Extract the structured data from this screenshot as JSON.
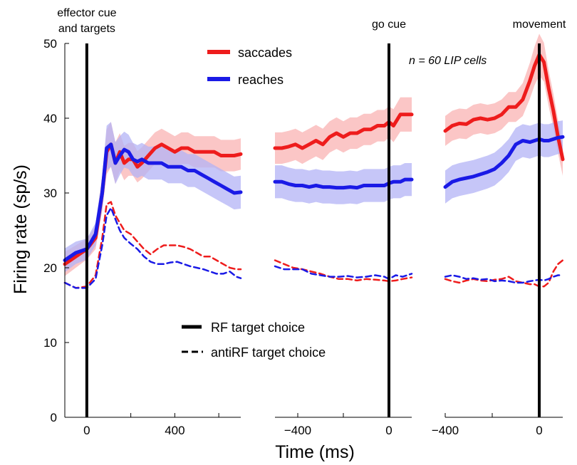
{
  "chart_data": {
    "type": "line",
    "ylabel": "Firing rate (sp/s)",
    "xlabel": "Time (ms)",
    "ylim": [
      0,
      50
    ],
    "yticks": [
      0,
      10,
      20,
      30,
      40,
      50
    ],
    "annotation": "n = 60 LIP cells",
    "legend": {
      "saccades": "saccades",
      "reaches": "reaches",
      "rf": "RF target choice",
      "antirf": "antiRF target choice"
    },
    "colors": {
      "saccades": "#ee1c1c",
      "reaches": "#1a1ae6",
      "saccades_band": "#f9b3b3",
      "reaches_band": "#b3b3f5"
    },
    "panels": [
      {
        "event": "effector cue and targets",
        "event_lines": [
          "effector cue",
          "and targets"
        ],
        "xlim": [
          -100,
          700
        ],
        "xticks": [
          0,
          400
        ],
        "minor_ticks": [
          200,
          600
        ],
        "series": [
          {
            "key": "saccades",
            "style": "solid",
            "x": [
              -100,
              -50,
              0,
              40,
              70,
              90,
              110,
              130,
              150,
              170,
              190,
              210,
              230,
              250,
              280,
              310,
              340,
              370,
              400,
              430,
              460,
              490,
              520,
              550,
              580,
              610,
              640,
              670,
              700
            ],
            "y": [
              20.5,
              21.5,
              22.5,
              24,
              30,
              35.5,
              36.5,
              34,
              35.5,
              34,
              34.5,
              34.5,
              33.5,
              34,
              35,
              36,
              36.5,
              36,
              35.5,
              36,
              36,
              35.5,
              35.5,
              35.5,
              35.5,
              35,
              35,
              35,
              35.2
            ],
            "band": [
              1.6,
              1.5,
              1.4,
              1.5,
              2.3,
              3,
              3,
              2.8,
              2.5,
              2.3,
              2.2,
              2.2,
              2.1,
              2.1,
              2.1,
              2.1,
              2.1,
              2.1,
              2.1,
              2.1,
              2.1,
              2.1,
              2.1,
              2.1,
              2.1,
              2.1,
              2.1,
              2.1,
              2.1
            ]
          },
          {
            "key": "reaches",
            "style": "solid",
            "x": [
              -100,
              -50,
              0,
              40,
              70,
              90,
              110,
              130,
              150,
              170,
              190,
              210,
              230,
              250,
              280,
              310,
              340,
              370,
              400,
              430,
              460,
              490,
              520,
              550,
              580,
              610,
              640,
              670,
              700
            ],
            "y": [
              21,
              22,
              22.5,
              24.5,
              30,
              36,
              36.5,
              34,
              35,
              35.8,
              35.5,
              34.5,
              34.2,
              34.5,
              34,
              34,
              34,
              33.5,
              33.5,
              33.5,
              33,
              33,
              32.5,
              32,
              31.5,
              31,
              30.5,
              30,
              30.1
            ],
            "band": [
              1.6,
              1.5,
              1.4,
              1.5,
              2.3,
              3,
              3,
              2.8,
              2.6,
              2.4,
              2.3,
              2.2,
              2.2,
              2.2,
              2.2,
              2.2,
              2.2,
              2.2,
              2.2,
              2.2,
              2.2,
              2.2,
              2.2,
              2.2,
              2.2,
              2.2,
              2.2,
              2.2,
              2.2
            ]
          },
          {
            "key": "saccades",
            "style": "dashed",
            "x": [
              -100,
              -50,
              0,
              40,
              70,
              90,
              110,
              130,
              150,
              170,
              200,
              230,
              260,
              290,
              320,
              350,
              380,
              410,
              440,
              470,
              500,
              530,
              560,
              590,
              620,
              650,
              680,
              700
            ],
            "y": [
              18,
              17.3,
              17.5,
              19,
              24,
              28.5,
              28.8,
              27,
              26,
              25,
              24.5,
              23.5,
              22.5,
              21.8,
              22.5,
              23,
              23,
              23,
              22.8,
              22.5,
              22,
              21.5,
              21.5,
              21,
              20.5,
              20,
              19.8,
              19.8
            ]
          },
          {
            "key": "reaches",
            "style": "dashed",
            "x": [
              -100,
              -50,
              0,
              40,
              70,
              90,
              110,
              130,
              150,
              170,
              200,
              230,
              260,
              290,
              320,
              350,
              380,
              410,
              440,
              470,
              500,
              530,
              560,
              590,
              620,
              650,
              680,
              700
            ],
            "y": [
              18,
              17.3,
              17.3,
              18.5,
              23,
              27,
              28,
              26.5,
              25,
              24,
              23.2,
              22.5,
              21.5,
              20.8,
              20.5,
              20.5,
              20.7,
              20.8,
              20.5,
              20.2,
              20,
              19.8,
              19.5,
              19.2,
              19.2,
              19.5,
              18.8,
              18.6
            ]
          }
        ]
      },
      {
        "event": "go cue",
        "event_lines": [
          "go cue"
        ],
        "xlim": [
          -500,
          100
        ],
        "xticks": [
          -400,
          0
        ],
        "minor_ticks": [
          -200
        ],
        "series": [
          {
            "key": "saccades",
            "style": "solid",
            "x": [
              -500,
              -470,
              -440,
              -410,
              -380,
              -350,
              -320,
              -290,
              -260,
              -230,
              -200,
              -170,
              -140,
              -110,
              -80,
              -50,
              -20,
              0,
              20,
              50,
              70,
              100
            ],
            "y": [
              36,
              36,
              36.2,
              36.5,
              36,
              36.5,
              37,
              36.5,
              37.5,
              38,
              37.5,
              38,
              38,
              38.5,
              38.5,
              39,
              39,
              39.5,
              39,
              40.5,
              40.5,
              40.5
            ],
            "band": [
              2.1,
              2.1,
              2.1,
              2.1,
              2.1,
              2.1,
              2.1,
              2.1,
              2.1,
              2.1,
              2.1,
              2.1,
              2.1,
              2.1,
              2.1,
              2.1,
              2.1,
              2.1,
              2.2,
              2.3,
              2.3,
              2.3
            ]
          },
          {
            "key": "reaches",
            "style": "solid",
            "x": [
              -500,
              -470,
              -440,
              -410,
              -380,
              -350,
              -320,
              -290,
              -260,
              -230,
              -200,
              -170,
              -140,
              -110,
              -80,
              -50,
              -20,
              0,
              20,
              50,
              70,
              100
            ],
            "y": [
              31.5,
              31.5,
              31.2,
              31,
              31,
              30.8,
              31,
              30.8,
              30.8,
              30.7,
              30.7,
              30.8,
              30.7,
              31,
              31,
              31,
              31,
              31.3,
              31.5,
              31.5,
              31.8,
              31.8
            ],
            "band": [
              2.2,
              2.2,
              2.2,
              2.2,
              2.2,
              2.2,
              2.2,
              2.2,
              2.2,
              2.2,
              2.2,
              2.2,
              2.2,
              2.2,
              2.2,
              2.2,
              2.2,
              2.2,
              2.2,
              2.2,
              2.2,
              2.2
            ]
          },
          {
            "key": "saccades",
            "style": "dashed",
            "x": [
              -500,
              -460,
              -420,
              -380,
              -340,
              -300,
              -260,
              -220,
              -180,
              -140,
              -100,
              -60,
              -20,
              0,
              30,
              60,
              100
            ],
            "y": [
              21,
              20.5,
              20,
              19.8,
              19.5,
              19.2,
              18.8,
              18.5,
              18.5,
              18.3,
              18.5,
              18.4,
              18.3,
              18.2,
              18.3,
              18.5,
              18.7
            ]
          },
          {
            "key": "reaches",
            "style": "dashed",
            "x": [
              -500,
              -460,
              -420,
              -380,
              -340,
              -300,
              -260,
              -220,
              -180,
              -140,
              -100,
              -60,
              -20,
              0,
              30,
              60,
              100
            ],
            "y": [
              20.2,
              19.8,
              19.8,
              19.8,
              19.2,
              19,
              18.8,
              18.8,
              18.9,
              18.7,
              18.8,
              19,
              18.8,
              18.5,
              19,
              18.8,
              19.2
            ]
          }
        ]
      },
      {
        "event": "movement",
        "event_lines": [
          "movement"
        ],
        "xlim": [
          -400,
          100
        ],
        "xticks": [
          -400,
          0
        ],
        "minor_ticks": [
          -200
        ],
        "series": [
          {
            "key": "saccades",
            "style": "solid",
            "x": [
              -400,
              -370,
              -340,
              -310,
              -280,
              -250,
              -220,
              -190,
              -160,
              -130,
              -100,
              -70,
              -40,
              -20,
              0,
              20,
              40,
              60,
              80,
              100
            ],
            "y": [
              38.3,
              39,
              39.3,
              39.2,
              39.8,
              40,
              39.8,
              40,
              40.5,
              41.5,
              41.5,
              42.5,
              45,
              47,
              48.5,
              47.5,
              44,
              41,
              37.5,
              34.5
            ],
            "band": [
              2,
              2,
              2,
              2,
              2,
              2,
              2,
              2,
              2,
              2,
              2,
              2.2,
              2.4,
              2.6,
              2.8,
              2.6,
              2.4,
              2.3,
              2.2,
              2.2
            ]
          },
          {
            "key": "reaches",
            "style": "solid",
            "x": [
              -400,
              -370,
              -340,
              -310,
              -280,
              -250,
              -220,
              -190,
              -160,
              -130,
              -100,
              -70,
              -40,
              -20,
              0,
              20,
              40,
              60,
              80,
              100
            ],
            "y": [
              30.8,
              31.5,
              31.8,
              32,
              32.2,
              32.5,
              32.8,
              33.2,
              34,
              35,
              36.5,
              37,
              36.8,
              37,
              37.2,
              37,
              37,
              37.2,
              37.4,
              37.5
            ],
            "band": [
              2.2,
              2.2,
              2.2,
              2.2,
              2.2,
              2.2,
              2.2,
              2.2,
              2.2,
              2.2,
              2.2,
              2.2,
              2.2,
              2.2,
              2.2,
              2.2,
              2.2,
              2.2,
              2.2,
              2.2
            ]
          },
          {
            "key": "saccades",
            "style": "dashed",
            "x": [
              -400,
              -370,
              -340,
              -310,
              -280,
              -250,
              -220,
              -190,
              -160,
              -130,
              -100,
              -70,
              -40,
              -20,
              0,
              20,
              40,
              60,
              80,
              100
            ],
            "y": [
              18.5,
              18.2,
              18,
              18.3,
              18.5,
              18.3,
              18.2,
              18.4,
              18.5,
              18.8,
              18.2,
              18,
              17.8,
              17.8,
              17.5,
              17.5,
              18,
              19.5,
              20.5,
              21
            ]
          },
          {
            "key": "reaches",
            "style": "dashed",
            "x": [
              -400,
              -370,
              -340,
              -310,
              -280,
              -250,
              -220,
              -190,
              -160,
              -130,
              -100,
              -70,
              -40,
              -20,
              0,
              20,
              40,
              60,
              80,
              100
            ],
            "y": [
              18.8,
              19,
              18.8,
              18.5,
              18.6,
              18.4,
              18.5,
              18.2,
              18.3,
              18.2,
              18,
              18,
              18.2,
              18.3,
              18.4,
              18.3,
              18.5,
              18.8,
              19,
              19
            ]
          }
        ]
      }
    ]
  }
}
